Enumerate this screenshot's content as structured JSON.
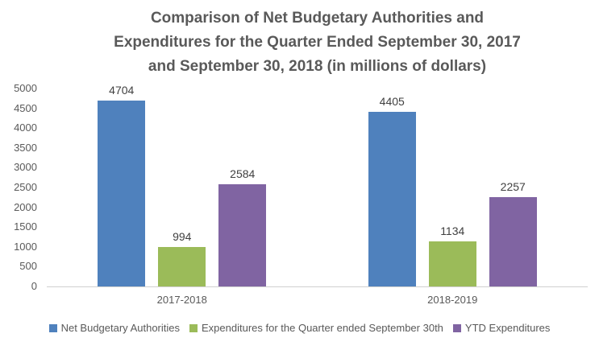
{
  "title": {
    "lines": [
      "Comparison of Net Budgetary Authorities and",
      "Expenditures for the Quarter Ended September 30, 2017",
      "and September 30, 2018 (in millions of dollars)"
    ]
  },
  "chart_data": {
    "type": "bar",
    "title": "Comparison of Net Budgetary Authorities and Expenditures for the Quarter Ended September 30, 2017 and September 30, 2018 (in millions of dollars)",
    "categories": [
      "2017-2018",
      "2018-2019"
    ],
    "series": [
      {
        "name": "Net Budgetary Authorities",
        "color": "#4F81BD",
        "values": [
          4704,
          4405
        ]
      },
      {
        "name": "Expenditures for the Quarter ended September 30th",
        "color": "#9BBB59",
        "values": [
          994,
          1134
        ]
      },
      {
        "name": "YTD Expenditures",
        "color": "#8064A2",
        "values": [
          2584,
          2257
        ]
      }
    ],
    "ylim": [
      0,
      5000
    ],
    "yticks": [
      0,
      500,
      1000,
      1500,
      2000,
      2500,
      3000,
      3500,
      4000,
      4500,
      5000
    ],
    "grid": false,
    "legend_position": "bottom",
    "data_labels": true,
    "colors": {
      "axis_line": "#CFCFCF",
      "text_gray": "#595959",
      "data_label": "#404040",
      "background": "#FFFFFF"
    }
  }
}
